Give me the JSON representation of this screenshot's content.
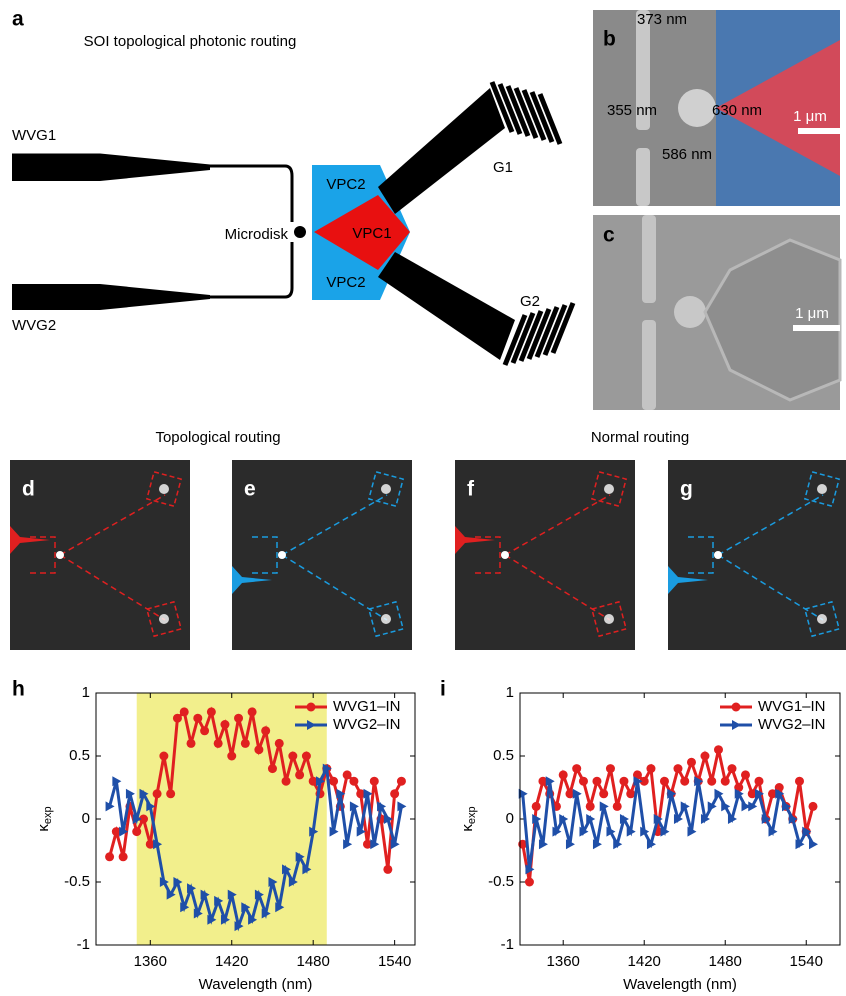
{
  "figure": {
    "panel_labels": [
      "a",
      "b",
      "c",
      "d",
      "e",
      "f",
      "g",
      "h",
      "i"
    ],
    "a": {
      "title": "SOI topological photonic routing",
      "wvg1": "WVG1",
      "wvg2": "WVG2",
      "microdisk": "Microdisk",
      "vpc2_top": "VPC2",
      "vpc1": "VPC1",
      "vpc2_bottom": "VPC2",
      "g1": "G1",
      "g2": "G2"
    },
    "b": {
      "dim1": "373 nm",
      "dim2": "355 nm",
      "dim3": "630 nm",
      "dim4": "586 nm",
      "scale": "1 μm"
    },
    "c": {
      "scale": "1 μm"
    },
    "row_titles": [
      "Topological routing",
      "Normal routing"
    ]
  },
  "chart_data": [
    {
      "type": "line",
      "xlabel": "Wavelength (nm)",
      "ylabel_symbol": "κ",
      "ylabel_sub": "exp",
      "xlim": [
        1320,
        1555
      ],
      "ylim": [
        -1,
        1
      ],
      "xticks": [
        1360,
        1420,
        1480,
        1540
      ],
      "yticks": [
        -1,
        -0.5,
        0,
        0.5,
        1
      ],
      "shaded_region": [
        1350,
        1490
      ],
      "shaded_color": "#f2ef8c",
      "legend": "upper right",
      "x": [
        1330,
        1335,
        1340,
        1345,
        1350,
        1355,
        1360,
        1365,
        1370,
        1375,
        1380,
        1385,
        1390,
        1395,
        1400,
        1405,
        1410,
        1415,
        1420,
        1425,
        1430,
        1435,
        1440,
        1445,
        1450,
        1455,
        1460,
        1465,
        1470,
        1475,
        1480,
        1485,
        1490,
        1495,
        1500,
        1505,
        1510,
        1515,
        1520,
        1525,
        1530,
        1535,
        1540,
        1545
      ],
      "series": [
        {
          "name": "WVG1–IN",
          "color": "#e02020",
          "marker": "circle",
          "values": [
            -0.3,
            -0.1,
            -0.3,
            0.1,
            -0.1,
            0.0,
            -0.2,
            0.2,
            0.5,
            0.2,
            0.8,
            0.85,
            0.6,
            0.8,
            0.7,
            0.85,
            0.6,
            0.75,
            0.5,
            0.8,
            0.6,
            0.85,
            0.55,
            0.7,
            0.4,
            0.6,
            0.3,
            0.5,
            0.35,
            0.5,
            0.3,
            0.2,
            0.4,
            0.3,
            0.1,
            0.35,
            0.3,
            0.2,
            -0.2,
            0.3,
            0.0,
            -0.4,
            0.2,
            0.3
          ]
        },
        {
          "name": "WVG2–IN",
          "color": "#1f4fa8",
          "marker": "triangle-right",
          "values": [
            0.1,
            0.3,
            -0.1,
            0.2,
            0.0,
            0.2,
            0.1,
            -0.2,
            -0.5,
            -0.6,
            -0.5,
            -0.7,
            -0.55,
            -0.75,
            -0.6,
            -0.8,
            -0.65,
            -0.8,
            -0.6,
            -0.85,
            -0.7,
            -0.8,
            -0.6,
            -0.75,
            -0.5,
            -0.7,
            -0.4,
            -0.5,
            -0.3,
            -0.4,
            -0.1,
            0.3,
            0.4,
            -0.1,
            0.2,
            -0.2,
            0.1,
            -0.1,
            0.2,
            -0.2,
            0.1,
            0.0,
            -0.2,
            0.1
          ]
        }
      ]
    },
    {
      "type": "line",
      "xlabel": "Wavelength (nm)",
      "ylabel_symbol": "κ",
      "ylabel_sub": "exp",
      "xlim": [
        1328,
        1565
      ],
      "ylim": [
        -1,
        1
      ],
      "xticks": [
        1360,
        1420,
        1480,
        1540
      ],
      "yticks": [
        -1,
        -0.5,
        0,
        0.5,
        1
      ],
      "legend": "upper right",
      "x": [
        1330,
        1335,
        1340,
        1345,
        1350,
        1355,
        1360,
        1365,
        1370,
        1375,
        1380,
        1385,
        1390,
        1395,
        1400,
        1405,
        1410,
        1415,
        1420,
        1425,
        1430,
        1435,
        1440,
        1445,
        1450,
        1455,
        1460,
        1465,
        1470,
        1475,
        1480,
        1485,
        1490,
        1495,
        1500,
        1505,
        1510,
        1515,
        1520,
        1525,
        1530,
        1535,
        1540,
        1545
      ],
      "series": [
        {
          "name": "WVG1–IN",
          "color": "#e02020",
          "marker": "circle",
          "values": [
            -0.2,
            -0.5,
            0.1,
            0.3,
            0.2,
            0.1,
            0.35,
            0.2,
            0.4,
            0.3,
            0.1,
            0.3,
            0.2,
            0.4,
            0.1,
            0.3,
            0.2,
            0.35,
            0.3,
            0.4,
            -0.1,
            0.3,
            0.2,
            0.4,
            0.3,
            0.45,
            0.3,
            0.5,
            0.3,
            0.55,
            0.3,
            0.4,
            0.25,
            0.35,
            0.2,
            0.3,
            0.0,
            0.2,
            0.25,
            0.1,
            0.0,
            0.3,
            -0.1,
            0.1
          ]
        },
        {
          "name": "WVG2–IN",
          "color": "#1f4fa8",
          "marker": "triangle-right",
          "values": [
            0.2,
            -0.4,
            0.0,
            -0.2,
            0.3,
            -0.1,
            0.0,
            -0.2,
            0.2,
            -0.1,
            0.0,
            -0.2,
            0.1,
            -0.1,
            -0.2,
            0.0,
            -0.1,
            0.3,
            -0.1,
            -0.2,
            0.0,
            -0.1,
            0.2,
            0.0,
            0.1,
            -0.1,
            0.3,
            0.0,
            0.1,
            0.2,
            0.1,
            0.0,
            0.2,
            0.1,
            0.1,
            0.2,
            0.0,
            -0.1,
            0.2,
            0.1,
            0.0,
            -0.2,
            -0.1,
            -0.2
          ]
        }
      ]
    }
  ]
}
